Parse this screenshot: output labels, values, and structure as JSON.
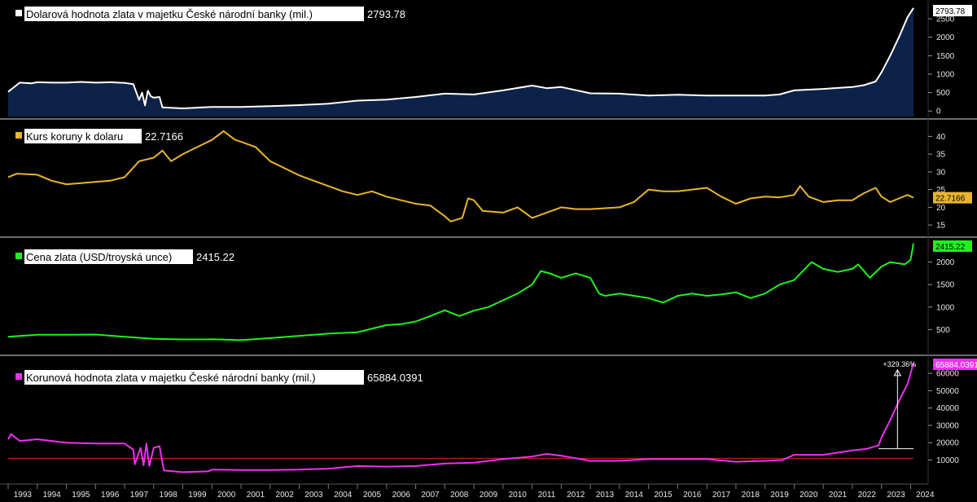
{
  "colors": {
    "background": "#000000",
    "divider": "#6a6a6a",
    "axis_text": "#e6e6e6",
    "panel1_line": "#ffffff",
    "panel1_fill": "#0d2248",
    "panel2_line": "#e8b52c",
    "panel3_line": "#21f021",
    "panel4_line": "#f02ff0",
    "reference_line": "#d0271f",
    "annotation": "#ffffff"
  },
  "toolbar": {
    "icon": "chart-settings-icon"
  },
  "chart_data": [
    {
      "type": "area",
      "legend": "Dolarová hodnota zlata v majetku České národní banky (mil.)",
      "last_value": "2793.78",
      "yticks": [
        0,
        500,
        1000,
        1500,
        2000,
        2500
      ],
      "ylim": [
        -150,
        2900
      ],
      "series": [
        {
          "values": [
            [
              1993.0,
              520
            ],
            [
              1993.4,
              770
            ],
            [
              1993.8,
              750
            ],
            [
              1994.0,
              780
            ],
            [
              1994.5,
              770
            ],
            [
              1995.0,
              770
            ],
            [
              1995.5,
              790
            ],
            [
              1996.0,
              770
            ],
            [
              1996.5,
              780
            ],
            [
              1997.0,
              760
            ],
            [
              1997.3,
              730
            ],
            [
              1997.5,
              300
            ],
            [
              1997.6,
              500
            ],
            [
              1997.7,
              150
            ],
            [
              1997.8,
              550
            ],
            [
              1997.9,
              400
            ],
            [
              1998.0,
              360
            ],
            [
              1998.2,
              380
            ],
            [
              1998.3,
              100
            ],
            [
              1999.0,
              70
            ],
            [
              2000.0,
              110
            ],
            [
              2001.0,
              110
            ],
            [
              2002.0,
              130
            ],
            [
              2003.0,
              160
            ],
            [
              2004.0,
              200
            ],
            [
              2005.0,
              280
            ],
            [
              2006.0,
              310
            ],
            [
              2007.0,
              380
            ],
            [
              2008.0,
              470
            ],
            [
              2009.0,
              450
            ],
            [
              2010.0,
              560
            ],
            [
              2011.0,
              690
            ],
            [
              2011.5,
              620
            ],
            [
              2012.0,
              650
            ],
            [
              2013.0,
              480
            ],
            [
              2014.0,
              470
            ],
            [
              2015.0,
              420
            ],
            [
              2016.0,
              440
            ],
            [
              2017.0,
              420
            ],
            [
              2018.0,
              420
            ],
            [
              2019.0,
              420
            ],
            [
              2019.5,
              450
            ],
            [
              2020.0,
              560
            ],
            [
              2021.0,
              600
            ],
            [
              2022.0,
              650
            ],
            [
              2022.4,
              700
            ],
            [
              2022.8,
              800
            ],
            [
              2023.0,
              1050
            ],
            [
              2023.3,
              1500
            ],
            [
              2023.6,
              2000
            ],
            [
              2023.9,
              2550
            ],
            [
              2024.1,
              2793.78
            ]
          ]
        }
      ]
    },
    {
      "type": "line",
      "legend": "Kurs koruny k dolaru",
      "last_value": "22.7166",
      "value_tag": "22.7166",
      "yticks": [
        15,
        20,
        25,
        30,
        35,
        40
      ],
      "ylim": [
        12.5,
        44
      ],
      "series": [
        {
          "values": [
            [
              1993.0,
              28.5
            ],
            [
              1993.3,
              29.5
            ],
            [
              1994.0,
              29.2
            ],
            [
              1994.5,
              27.5
            ],
            [
              1995.0,
              26.5
            ],
            [
              1995.5,
              26.8
            ],
            [
              1996.0,
              27.2
            ],
            [
              1996.5,
              27.5
            ],
            [
              1997.0,
              28.5
            ],
            [
              1997.5,
              33
            ],
            [
              1998.0,
              34
            ],
            [
              1998.3,
              36
            ],
            [
              1998.6,
              33
            ],
            [
              1999.0,
              35
            ],
            [
              1999.5,
              37
            ],
            [
              2000.0,
              39
            ],
            [
              2000.4,
              41.5
            ],
            [
              2000.8,
              39
            ],
            [
              2001.0,
              38.5
            ],
            [
              2001.5,
              37
            ],
            [
              2002.0,
              33
            ],
            [
              2002.5,
              31
            ],
            [
              2003.0,
              29
            ],
            [
              2003.5,
              27.5
            ],
            [
              2004.0,
              26
            ],
            [
              2004.5,
              24.5
            ],
            [
              2005.0,
              23.5
            ],
            [
              2005.5,
              24.5
            ],
            [
              2006.0,
              23
            ],
            [
              2006.5,
              22
            ],
            [
              2007.0,
              21
            ],
            [
              2007.5,
              20.5
            ],
            [
              2008.0,
              17.5
            ],
            [
              2008.2,
              16
            ],
            [
              2008.6,
              17
            ],
            [
              2008.8,
              22.5
            ],
            [
              2009.0,
              22
            ],
            [
              2009.3,
              19
            ],
            [
              2010.0,
              18.5
            ],
            [
              2010.5,
              20
            ],
            [
              2011.0,
              17
            ],
            [
              2011.5,
              18.5
            ],
            [
              2012.0,
              20
            ],
            [
              2012.5,
              19.5
            ],
            [
              2013.0,
              19.5
            ],
            [
              2014.0,
              20
            ],
            [
              2014.5,
              21.5
            ],
            [
              2015.0,
              25
            ],
            [
              2015.5,
              24.5
            ],
            [
              2016.0,
              24.5
            ],
            [
              2017.0,
              25.5
            ],
            [
              2017.5,
              23
            ],
            [
              2018.0,
              21
            ],
            [
              2018.5,
              22.5
            ],
            [
              2019.0,
              23
            ],
            [
              2019.5,
              22.8
            ],
            [
              2020.0,
              23.5
            ],
            [
              2020.2,
              26
            ],
            [
              2020.5,
              23
            ],
            [
              2021.0,
              21.5
            ],
            [
              2021.5,
              22
            ],
            [
              2022.0,
              22
            ],
            [
              2022.4,
              24
            ],
            [
              2022.8,
              25.5
            ],
            [
              2023.0,
              23
            ],
            [
              2023.3,
              21.5
            ],
            [
              2023.6,
              22.5
            ],
            [
              2023.9,
              23.5
            ],
            [
              2024.1,
              22.7
            ]
          ]
        }
      ]
    },
    {
      "type": "line",
      "legend": "Cena zlata (USD/troyská unce)",
      "last_value": "2415.22",
      "value_tag": "2415.22",
      "yticks": [
        500,
        1000,
        1500,
        2000
      ],
      "ylim": [
        0,
        2500
      ],
      "series": [
        {
          "values": [
            [
              1993.0,
              340
            ],
            [
              1994.0,
              385
            ],
            [
              1995.0,
              385
            ],
            [
              1996.0,
              390
            ],
            [
              1997.0,
              340
            ],
            [
              1998.0,
              295
            ],
            [
              1999.0,
              280
            ],
            [
              1999.8,
              280
            ],
            [
              2000.0,
              285
            ],
            [
              2001.0,
              265
            ],
            [
              2002.0,
              310
            ],
            [
              2003.0,
              360
            ],
            [
              2004.0,
              410
            ],
            [
              2005.0,
              440
            ],
            [
              2006.0,
              600
            ],
            [
              2006.5,
              620
            ],
            [
              2007.0,
              680
            ],
            [
              2007.5,
              800
            ],
            [
              2008.0,
              930
            ],
            [
              2008.5,
              800
            ],
            [
              2009.0,
              920
            ],
            [
              2009.5,
              1000
            ],
            [
              2010.0,
              1150
            ],
            [
              2010.5,
              1300
            ],
            [
              2011.0,
              1500
            ],
            [
              2011.3,
              1800
            ],
            [
              2011.6,
              1750
            ],
            [
              2012.0,
              1650
            ],
            [
              2012.5,
              1750
            ],
            [
              2013.0,
              1650
            ],
            [
              2013.3,
              1300
            ],
            [
              2013.5,
              1250
            ],
            [
              2014.0,
              1300
            ],
            [
              2014.5,
              1250
            ],
            [
              2015.0,
              1200
            ],
            [
              2015.5,
              1100
            ],
            [
              2016.0,
              1250
            ],
            [
              2016.5,
              1300
            ],
            [
              2017.0,
              1250
            ],
            [
              2017.5,
              1280
            ],
            [
              2018.0,
              1330
            ],
            [
              2018.5,
              1200
            ],
            [
              2019.0,
              1300
            ],
            [
              2019.5,
              1500
            ],
            [
              2020.0,
              1600
            ],
            [
              2020.3,
              1800
            ],
            [
              2020.6,
              2000
            ],
            [
              2021.0,
              1850
            ],
            [
              2021.5,
              1780
            ],
            [
              2022.0,
              1850
            ],
            [
              2022.2,
              1950
            ],
            [
              2022.6,
              1650
            ],
            [
              2023.0,
              1900
            ],
            [
              2023.3,
              2000
            ],
            [
              2023.8,
              1950
            ],
            [
              2024.0,
              2050
            ],
            [
              2024.1,
              2415.22
            ]
          ]
        }
      ]
    },
    {
      "type": "line",
      "legend": "Korunová hodnota zlata v majetku České národní banky (mil.)",
      "last_value": "65884.0391",
      "value_tag": "65884.0391",
      "annotation": "+329.36%",
      "yticks": [
        10000,
        20000,
        30000,
        40000,
        50000,
        60000
      ],
      "ylim": [
        -2000,
        69000
      ],
      "reference_line": 11000,
      "series": [
        {
          "values": [
            [
              1993.0,
              22000
            ],
            [
              1993.1,
              25000
            ],
            [
              1993.4,
              21000
            ],
            [
              1994.0,
              22000
            ],
            [
              1995.0,
              20000
            ],
            [
              1996.0,
              19500
            ],
            [
              1997.0,
              19500
            ],
            [
              1997.3,
              16000
            ],
            [
              1997.35,
              7500
            ],
            [
              1997.55,
              17000
            ],
            [
              1997.65,
              7000
            ],
            [
              1997.75,
              19500
            ],
            [
              1997.85,
              6500
            ],
            [
              1998.0,
              17000
            ],
            [
              1998.2,
              18000
            ],
            [
              1998.35,
              4000
            ],
            [
              1999.0,
              3000
            ],
            [
              1999.9,
              3500
            ],
            [
              2000.0,
              4500
            ],
            [
              2001.0,
              4200
            ],
            [
              2002.0,
              4200
            ],
            [
              2003.0,
              4500
            ],
            [
              2004.0,
              5000
            ],
            [
              2005.0,
              6500
            ],
            [
              2006.0,
              6200
            ],
            [
              2007.0,
              6500
            ],
            [
              2008.0,
              8000
            ],
            [
              2009.0,
              8500
            ],
            [
              2010.0,
              10500
            ],
            [
              2011.0,
              12000
            ],
            [
              2011.5,
              13500
            ],
            [
              2012.0,
              12500
            ],
            [
              2013.0,
              9500
            ],
            [
              2014.0,
              9500
            ],
            [
              2015.0,
              10500
            ],
            [
              2016.0,
              10500
            ],
            [
              2017.0,
              10500
            ],
            [
              2018.0,
              9000
            ],
            [
              2019.0,
              9500
            ],
            [
              2019.6,
              10000
            ],
            [
              2020.0,
              13000
            ],
            [
              2021.0,
              13000
            ],
            [
              2022.0,
              15500
            ],
            [
              2022.5,
              16500
            ],
            [
              2022.9,
              18500
            ],
            [
              2023.0,
              23000
            ],
            [
              2023.3,
              33000
            ],
            [
              2023.6,
              44000
            ],
            [
              2023.9,
              54000
            ],
            [
              2024.1,
              65884.04
            ]
          ]
        }
      ]
    },
    {
      "type": "axis",
      "x_tick_labels": [
        "1993",
        "1994",
        "1995",
        "1996",
        "1997",
        "1998",
        "1999",
        "2000",
        "2001",
        "2002",
        "2003",
        "2004",
        "2005",
        "2006",
        "2007",
        "2008",
        "2009",
        "2010",
        "2011",
        "2012",
        "2013",
        "2014",
        "2015",
        "2016",
        "2017",
        "2018",
        "2019",
        "2020",
        "2021",
        "2022",
        "2023",
        "2024"
      ]
    }
  ]
}
